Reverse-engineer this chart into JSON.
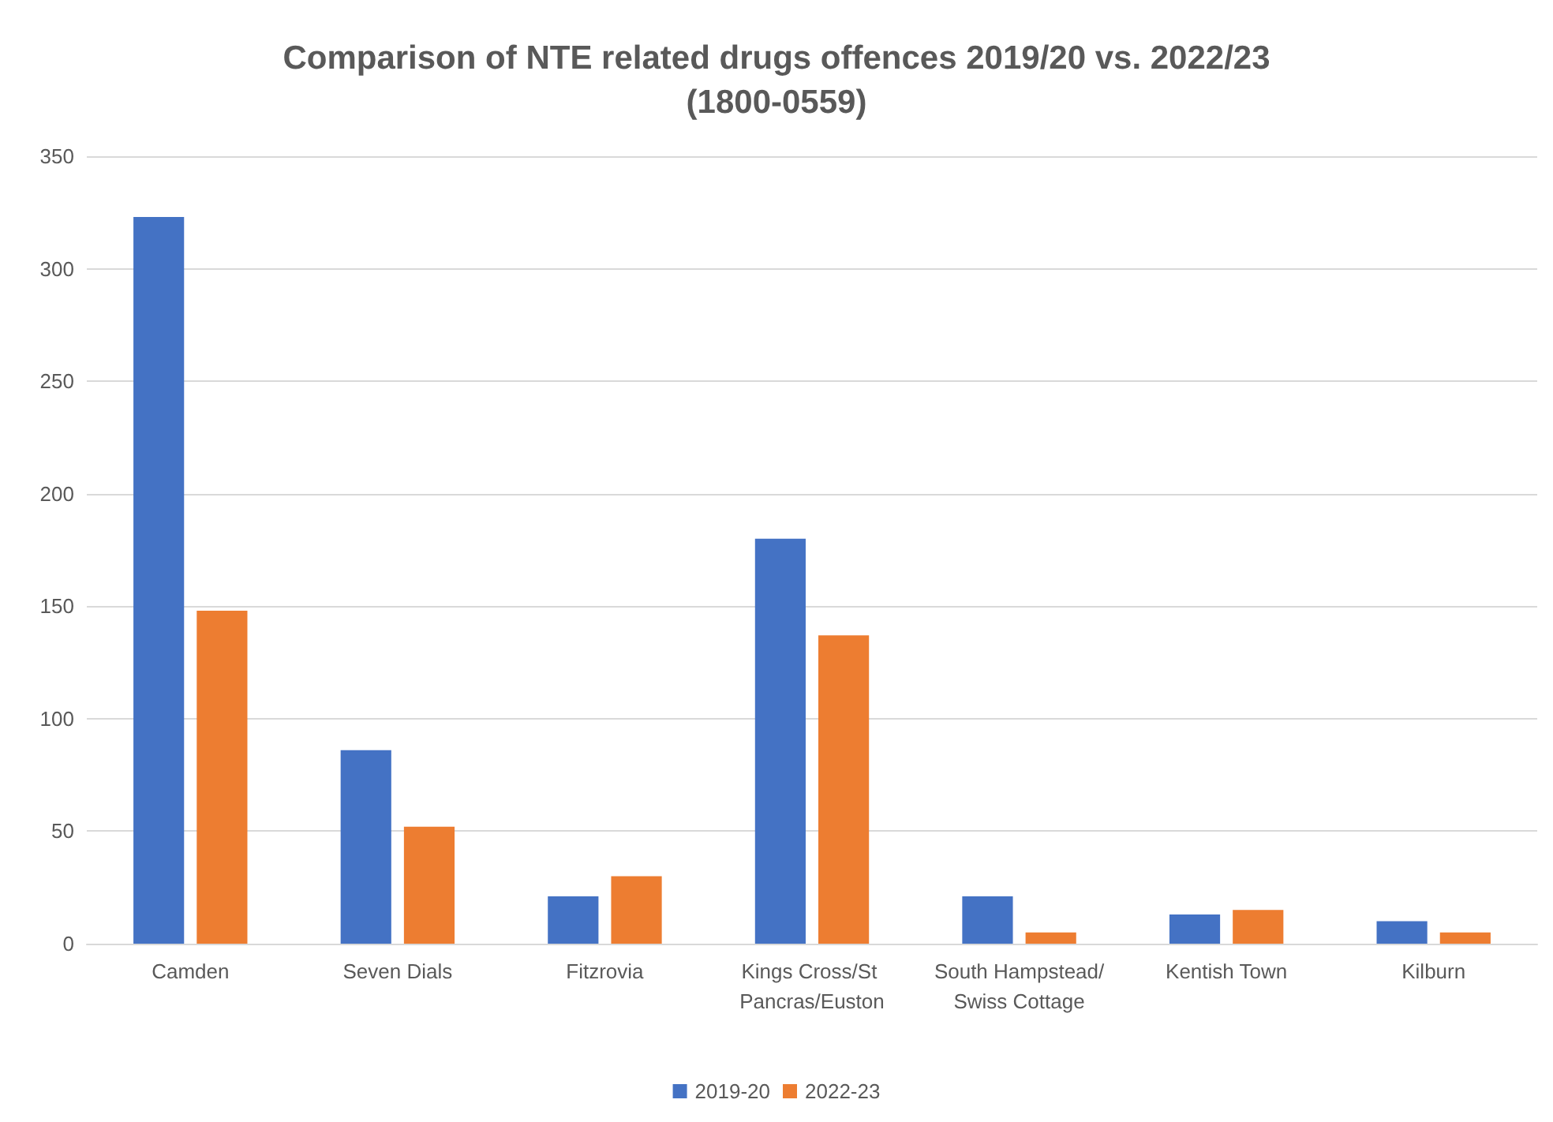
{
  "chart_data": {
    "type": "bar",
    "title": "Comparison of NTE related drugs offences 2019/20 vs. 2022/23\n(1800-0559)",
    "categories": [
      "Camden",
      "Seven Dials",
      "Fitzrovia",
      "Kings Cross/St Pancras/Euston",
      "South Hampstead/Swiss Cottage",
      "Kentish Town",
      "Kilburn"
    ],
    "series": [
      {
        "name": "2019-20",
        "color": "#4472c4",
        "values": [
          323,
          86,
          21,
          180,
          21,
          13,
          10
        ]
      },
      {
        "name": "2022-23",
        "color": "#ed7d31",
        "values": [
          148,
          52,
          30,
          137,
          5,
          15,
          5
        ]
      }
    ],
    "ylim": [
      0,
      350
    ],
    "yticks": [
      0,
      50,
      100,
      150,
      200,
      250,
      300,
      350
    ],
    "grid": "y",
    "legend": "bottom"
  }
}
